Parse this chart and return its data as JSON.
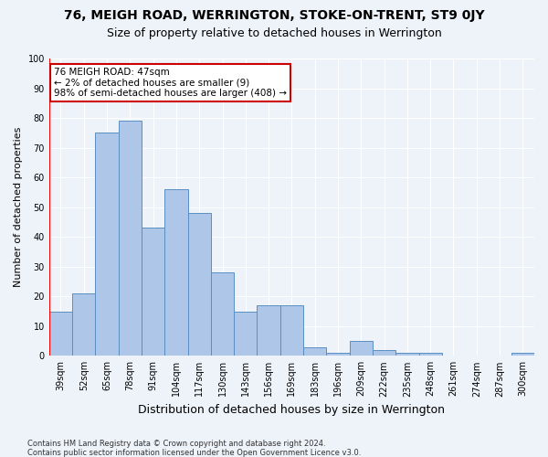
{
  "title": "76, MEIGH ROAD, WERRINGTON, STOKE-ON-TRENT, ST9 0JY",
  "subtitle": "Size of property relative to detached houses in Werrington",
  "xlabel": "Distribution of detached houses by size in Werrington",
  "ylabel": "Number of detached properties",
  "categories": [
    "39sqm",
    "52sqm",
    "65sqm",
    "78sqm",
    "91sqm",
    "104sqm",
    "117sqm",
    "130sqm",
    "143sqm",
    "156sqm",
    "169sqm",
    "183sqm",
    "196sqm",
    "209sqm",
    "222sqm",
    "235sqm",
    "248sqm",
    "261sqm",
    "274sqm",
    "287sqm",
    "300sqm"
  ],
  "values": [
    15,
    21,
    75,
    79,
    43,
    56,
    48,
    28,
    15,
    17,
    17,
    3,
    1,
    5,
    2,
    1,
    1,
    0,
    0,
    0,
    1
  ],
  "bar_color": "#aec6e8",
  "bar_edge_color": "#5a8fc2",
  "highlight_color": "#ff0000",
  "annotation_title": "76 MEIGH ROAD: 47sqm",
  "annotation_line1": "← 2% of detached houses are smaller (9)",
  "annotation_line2": "98% of semi-detached houses are larger (408) →",
  "annotation_box_color": "#ffffff",
  "annotation_box_edgecolor": "#cc0000",
  "ylim": [
    0,
    100
  ],
  "yticks": [
    0,
    10,
    20,
    30,
    40,
    50,
    60,
    70,
    80,
    90,
    100
  ],
  "footer1": "Contains HM Land Registry data © Crown copyright and database right 2024.",
  "footer2": "Contains public sector information licensed under the Open Government Licence v3.0.",
  "bg_color": "#eef2f9",
  "plot_bg_color": "#eef2f9",
  "grid_color": "#ffffff",
  "title_fontsize": 10,
  "subtitle_fontsize": 9,
  "xlabel_fontsize": 9,
  "ylabel_fontsize": 8,
  "tick_fontsize": 7,
  "annotation_fontsize": 7.5,
  "footer_fontsize": 6
}
